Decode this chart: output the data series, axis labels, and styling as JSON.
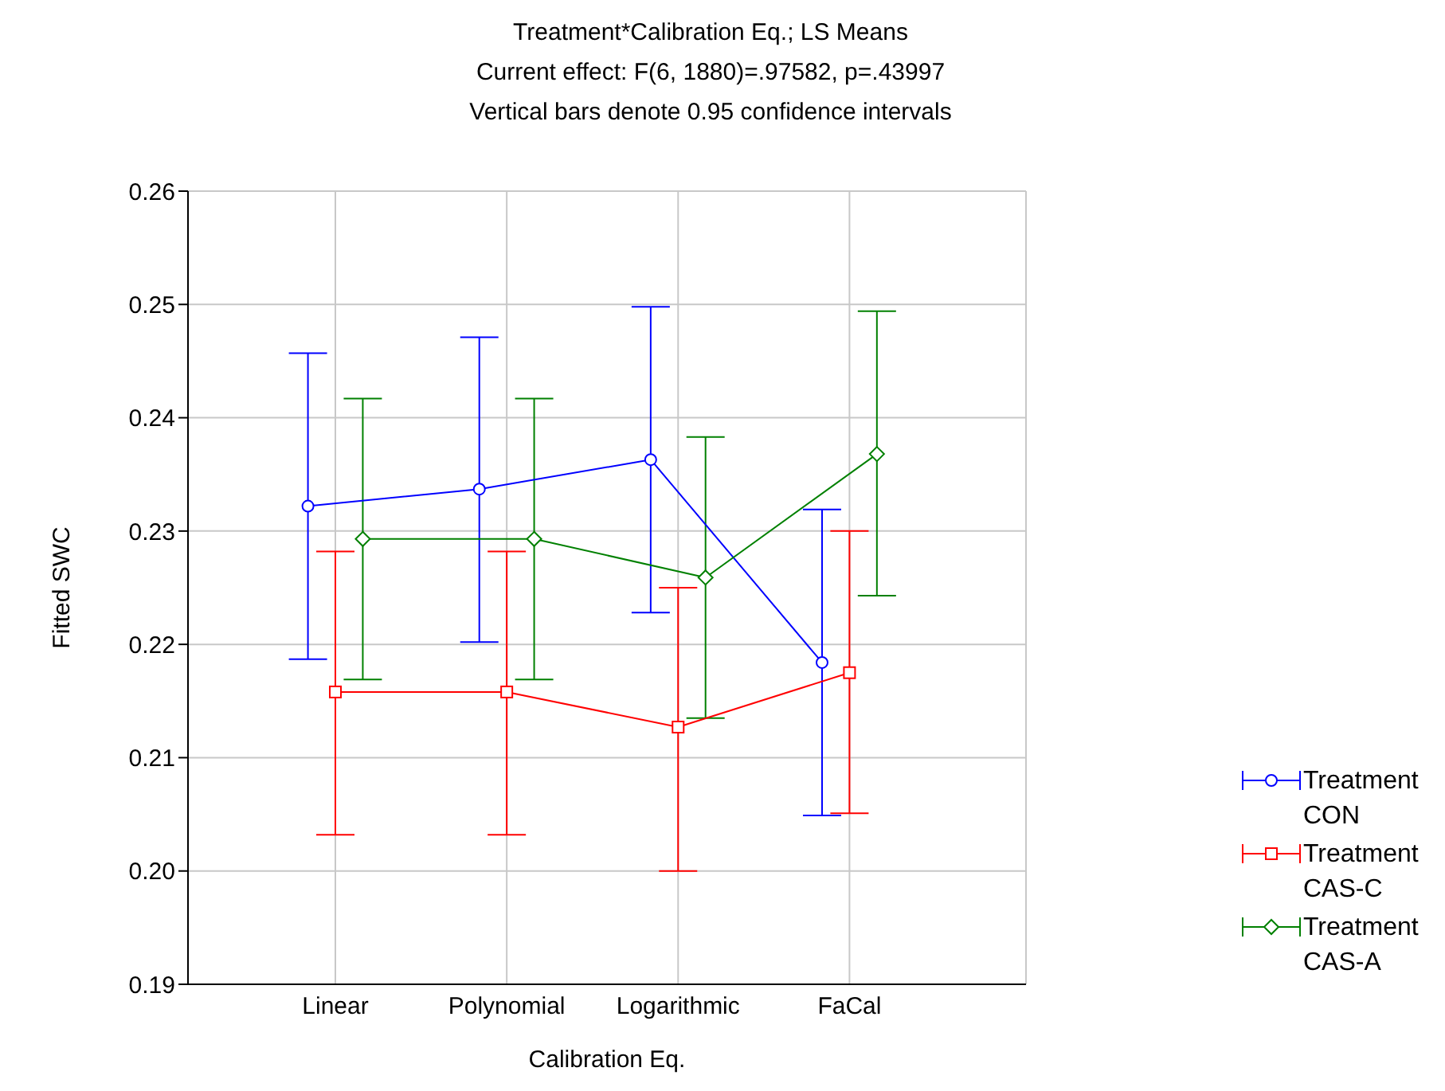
{
  "chart_data": {
    "type": "line",
    "title": "Treatment*Calibration Eq.; LS Means",
    "subtitle": "Current effect: F(6, 1880)=.97582, p=.43997",
    "annotations": [
      "Vertical bars denote 0.95 confidence intervals"
    ],
    "xlabel": "Calibration Eq.",
    "ylabel": "Fitted SWC",
    "categories": [
      "Linear",
      "Polynomial",
      "Logarithmic",
      "FaCal"
    ],
    "ylim": [
      0.19,
      0.26
    ],
    "yticks": [
      {
        "value": 0.19,
        "label": "0.19"
      },
      {
        "value": 0.2,
        "label": "0.20"
      },
      0.21,
      0.22,
      0.23,
      0.24,
      0.25,
      0.26
    ],
    "grid": true,
    "legend": "bottom right",
    "series": [
      {
        "name": "Treatment CON",
        "color": "#0000ff",
        "marker": "circle",
        "values": [
          0.2322,
          0.2337,
          0.2363,
          0.2184
        ],
        "errors": [
          [
            0.2187,
            0.2457
          ],
          [
            0.2202,
            0.2471
          ],
          [
            0.2228,
            0.2498
          ],
          [
            0.2049,
            0.2319
          ]
        ]
      },
      {
        "name": "Treatment CAS-C",
        "color": "#ff0000",
        "marker": "square",
        "values": [
          0.2158,
          0.2158,
          0.2127,
          0.2175
        ],
        "errors": [
          [
            0.2032,
            0.2282
          ],
          [
            0.2032,
            0.2282
          ],
          [
            0.2,
            0.225
          ],
          [
            0.2051,
            0.23
          ]
        ]
      },
      {
        "name": "Treatment CAS-A",
        "color": "#008000",
        "marker": "diamond",
        "values": [
          0.2293,
          0.2293,
          0.2259,
          0.2368
        ],
        "errors": [
          [
            0.2169,
            0.2417
          ],
          [
            0.2169,
            0.2417
          ],
          [
            0.2135,
            0.2383
          ],
          [
            0.2243,
            0.2494
          ]
        ]
      }
    ]
  }
}
